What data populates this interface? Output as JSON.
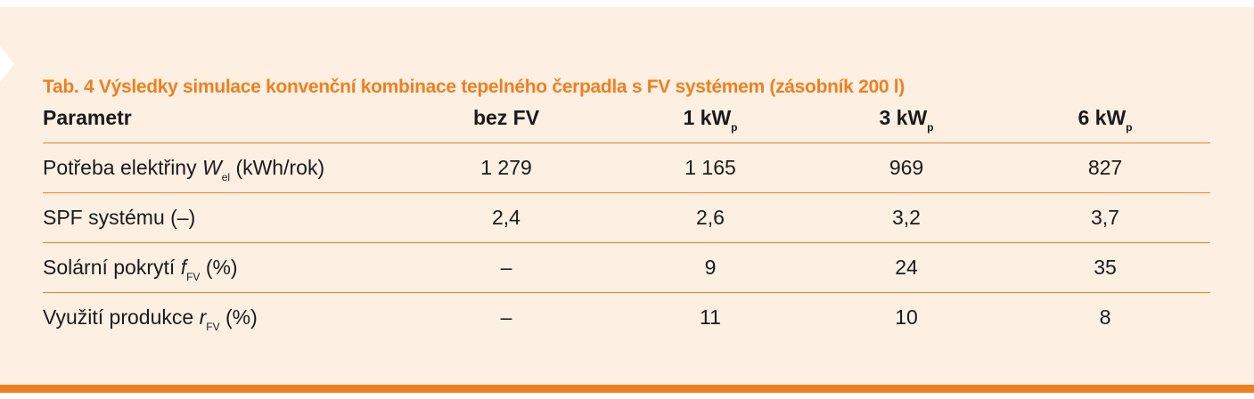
{
  "table": {
    "title": "Tab. 4 Výsledky simulace konvenční kombinace tepelného čerpadla s FV systémem (zásobník 200 l)",
    "header": [
      {
        "text": "Parametr"
      },
      {
        "text": "bez FV"
      },
      {
        "text": "1 kW",
        "sub": "p"
      },
      {
        "text": "3 kW",
        "sub": "p"
      },
      {
        "text": "6 kW",
        "sub": "p"
      }
    ],
    "rows": [
      {
        "label": {
          "text": "Potřeba elektřiny",
          "symbol": "W",
          "sub": "el",
          "unit": "(kWh/rok)"
        },
        "cells": [
          "1 279",
          "1 165",
          "969",
          "827"
        ]
      },
      {
        "label": {
          "text": "SPF systému (–)"
        },
        "cells": [
          "2,4",
          "2,6",
          "3,2",
          "3,7"
        ]
      },
      {
        "label": {
          "text": "Solární pokrytí",
          "symbol": "f",
          "sub": "FV",
          "unit": "(%)"
        },
        "cells": [
          "–",
          "9",
          "24",
          "35"
        ]
      },
      {
        "label": {
          "text": "Využití produkce",
          "symbol": "r",
          "sub": "FV",
          "unit": "(%)"
        },
        "cells": [
          "–",
          "11",
          "10",
          "8"
        ]
      }
    ]
  }
}
